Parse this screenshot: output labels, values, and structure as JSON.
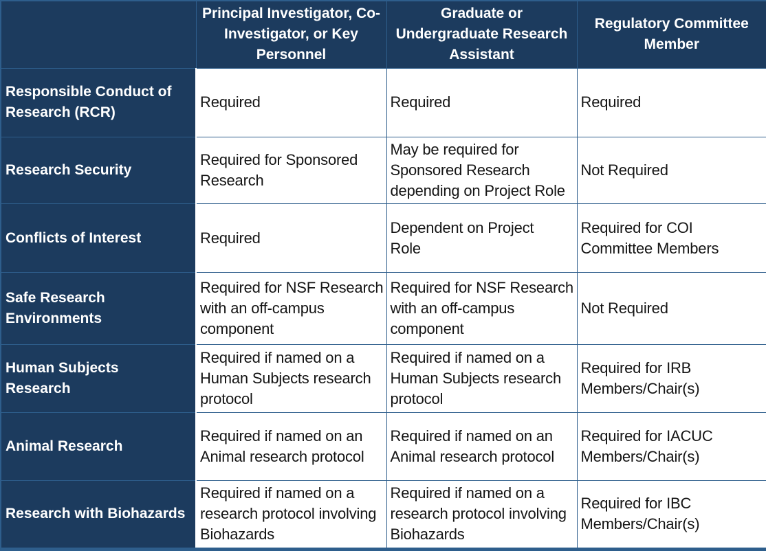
{
  "colors": {
    "header_bg": "#1C3B5E",
    "grid_line": "#2E5E8C",
    "header_text": "#FFFFFF",
    "body_text": "#141414",
    "body_bg": "#FFFFFF"
  },
  "table": {
    "columns": [
      "",
      "Principal Investigator, Co-\nInvestigator, or Key\nPersonnel",
      "Graduate or\nUndergraduate Research\nAssistant",
      "Regulatory Committee\nMember"
    ],
    "rows": [
      {
        "label": "Responsible Conduct of\nResearch (RCR)",
        "cells": [
          "Required",
          "Required",
          "Required"
        ]
      },
      {
        "label": "Research Security",
        "cells": [
          "Required for Sponsored\nResearch",
          "May be required for\nSponsored Research\ndepending on Project Role",
          "Not Required"
        ]
      },
      {
        "label": "Conflicts of Interest",
        "cells": [
          "Required",
          "Dependent on Project\nRole",
          "Required for COI\nCommittee Members"
        ]
      },
      {
        "label": "Safe Research\nEnvironments",
        "cells": [
          "Required for NSF Research\nwith an off-campus\ncomponent",
          "Required for NSF Research\nwith an off-campus\ncomponent",
          "Not Required"
        ]
      },
      {
        "label": "Human Subjects\nResearch",
        "cells": [
          "Required if named on a\nHuman Subjects research\nprotocol",
          "Required if named on a\nHuman Subjects research\nprotocol",
          "Required for IRB\nMembers/Chair(s)"
        ]
      },
      {
        "label": "Animal Research",
        "cells": [
          "Required if named on an\nAnimal research protocol",
          "Required if named on an\nAnimal research protocol",
          "Required for IACUC\nMembers/Chair(s)"
        ]
      },
      {
        "label": "Research with Biohazards",
        "cells": [
          "Required if named on a\nresearch protocol involving\nBiohazards",
          "Required if named on a\nresearch protocol involving\nBiohazards",
          "Required for IBC\nMembers/Chair(s)"
        ]
      }
    ]
  }
}
